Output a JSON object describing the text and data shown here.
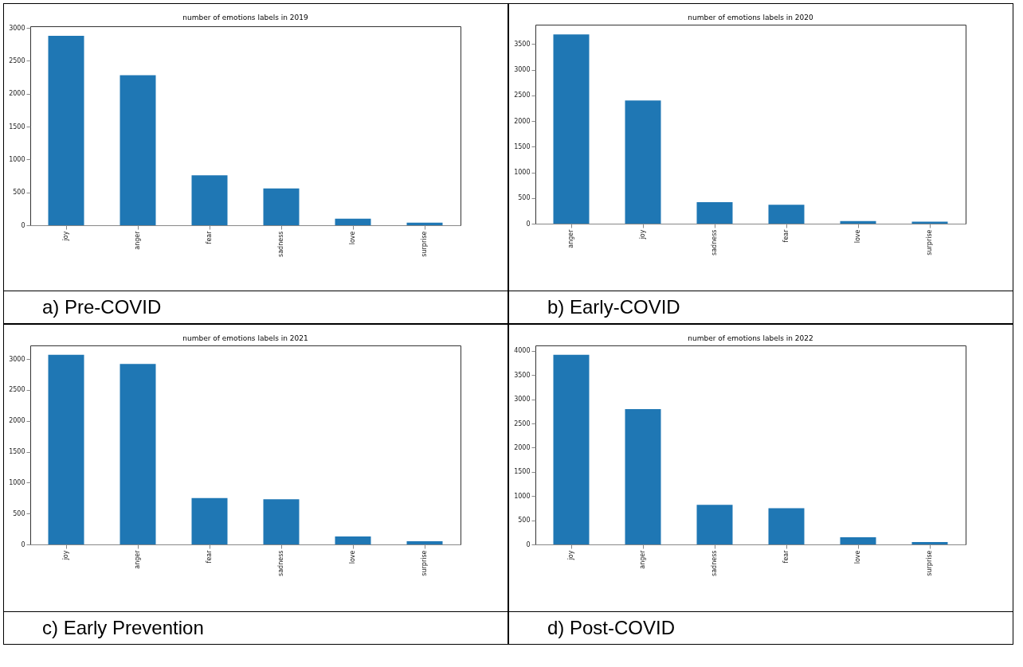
{
  "chart_data": [
    {
      "type": "bar",
      "title": "number of emotions labels in 2019",
      "categories": [
        "joy",
        "anger",
        "fear",
        "sadness",
        "love",
        "surprise"
      ],
      "values": [
        2880,
        2280,
        760,
        560,
        100,
        40
      ],
      "color": "#1f77b4",
      "ylim": [
        0,
        3025
      ],
      "yticks": [
        0,
        500,
        1000,
        1500,
        2000,
        2500,
        3000
      ],
      "annotations": [
        "a)   Pre-COVID"
      ]
    },
    {
      "type": "bar",
      "title": "number of emotions labels in 2020",
      "categories": [
        "anger",
        "joy",
        "sadness",
        "fear",
        "love",
        "surprise"
      ],
      "values": [
        3690,
        2400,
        420,
        370,
        50,
        40
      ],
      "color": "#1f77b4",
      "ylim": [
        0,
        3880
      ],
      "yticks": [
        0,
        500,
        1000,
        1500,
        2000,
        2500,
        3000,
        3500
      ],
      "annotations": [
        "b)   Early-COVID"
      ]
    },
    {
      "type": "bar",
      "title": "number of emotions labels in 2021",
      "categories": [
        "joy",
        "anger",
        "fear",
        "sadness",
        "love",
        "surprise"
      ],
      "values": [
        3070,
        2920,
        750,
        730,
        130,
        50
      ],
      "color": "#1f77b4",
      "ylim": [
        0,
        3220
      ],
      "yticks": [
        0,
        500,
        1000,
        1500,
        2000,
        2500,
        3000
      ],
      "annotations": [
        "c)   Early Prevention"
      ]
    },
    {
      "type": "bar",
      "title": "number of emotions labels in 2022",
      "categories": [
        "joy",
        "anger",
        "sadness",
        "fear",
        "love",
        "surprise"
      ],
      "values": [
        3920,
        2800,
        820,
        750,
        150,
        50
      ],
      "color": "#1f77b4",
      "ylim": [
        0,
        4115
      ],
      "yticks": [
        0,
        500,
        1000,
        1500,
        2000,
        2500,
        3000,
        3500,
        4000
      ],
      "annotations": [
        "d)   Post-COVID"
      ]
    }
  ]
}
